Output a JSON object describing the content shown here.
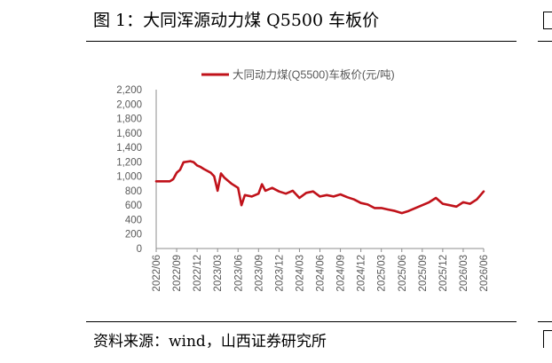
{
  "figure": {
    "title": "图 1：大同浑源动力煤 Q5500 车板价",
    "source": "资料来源：wind，山西证券研究所"
  },
  "colors": {
    "series": "#C0121A",
    "axis": "#8c8c8c",
    "text": "#595959"
  },
  "chart_data": {
    "type": "line",
    "title": "",
    "xlabel": "",
    "ylabel": "",
    "ylim": [
      0,
      2200
    ],
    "yticks": [
      "0",
      "200",
      "400",
      "600",
      "800",
      "1,000",
      "1,200",
      "1,400",
      "1,600",
      "1,800",
      "2,000",
      "2,200"
    ],
    "xticks": [
      "2022/06",
      "2022/09",
      "2022/12",
      "2023/03",
      "2023/06",
      "2023/09",
      "2023/12",
      "2024/03",
      "2024/06",
      "2024/09",
      "2024/12",
      "2025/03",
      "2025/06",
      "2025/09",
      "2025/12",
      "2026/03",
      "2026/06"
    ],
    "grid": false,
    "legend": "top",
    "series": [
      {
        "name": "大同动力煤(Q5500)车板价(元/吨)",
        "x": [
          "2022/06",
          "2022/07",
          "2022/08",
          "2022/08",
          "2022/09",
          "2022/09",
          "2022/10",
          "2022/11",
          "2022/11",
          "2022/12",
          "2022/12",
          "2023/01",
          "2023/02",
          "2023/02",
          "2023/03",
          "2023/03",
          "2023/04",
          "2023/05",
          "2023/06",
          "2023/06",
          "2023/07",
          "2023/08",
          "2023/09",
          "2023/09",
          "2023/10",
          "2023/11",
          "2023/12",
          "2024/01",
          "2024/02",
          "2024/03",
          "2024/04",
          "2024/05",
          "2024/06",
          "2024/07",
          "2024/08",
          "2024/09",
          "2024/10",
          "2024/11",
          "2024/12",
          "2025/01",
          "2025/02",
          "2025/03",
          "2025/04",
          "2025/05",
          "2025/06",
          "2025/07",
          "2025/08",
          "2025/09",
          "2025/10",
          "2025/11",
          "2025/12",
          "2026/01",
          "2026/02",
          "2026/03",
          "2026/04",
          "2026/05",
          "2026/06"
        ],
        "y": [
          930,
          930,
          930,
          960,
          1050,
          1090,
          1195,
          1210,
          1195,
          1150,
          1130,
          1100,
          1050,
          1000,
          800,
          1040,
          980,
          900,
          840,
          600,
          740,
          720,
          760,
          890,
          800,
          840,
          790,
          760,
          800,
          700,
          770,
          790,
          720,
          740,
          720,
          750,
          710,
          680,
          630,
          610,
          560,
          560,
          540,
          520,
          490,
          520,
          560,
          600,
          640,
          700,
          620,
          600,
          580,
          640,
          620,
          680,
          790
        ]
      }
    ]
  }
}
